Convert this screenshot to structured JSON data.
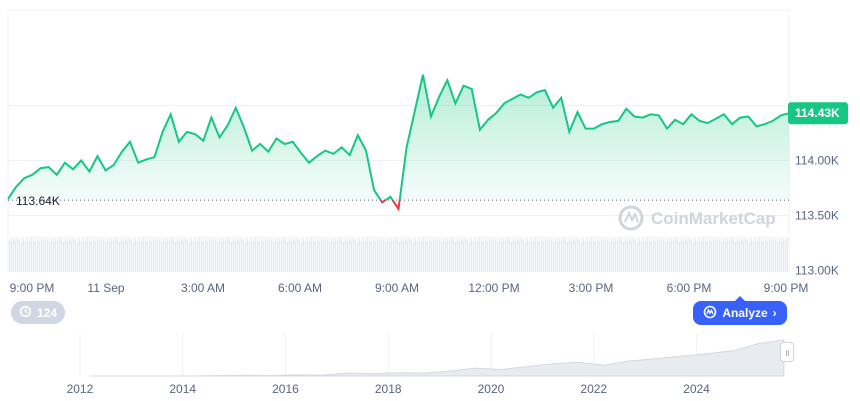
{
  "chart_data": {
    "type": "area",
    "title": "",
    "xlabel": "",
    "ylabel": "",
    "x_tick_labels": [
      "9:00 PM",
      "11 Sep",
      "3:00 AM",
      "6:00 AM",
      "9:00 AM",
      "12:00 PM",
      "3:00 PM",
      "6:00 PM",
      "9:00 PM"
    ],
    "y_tick_labels": [
      "114.00K",
      "113.50K",
      "113.00K"
    ],
    "y_ticks": [
      114000,
      113500,
      113000
    ],
    "ylim": [
      112850,
      115050
    ],
    "open_value": 113640,
    "open_label": "113.64K",
    "current_value": 114430,
    "current_label": "114.43K",
    "x_start_hours": 0,
    "x_end_hours": 24,
    "series": [
      {
        "x_hours": [
          0,
          0.25,
          0.5,
          0.75,
          1.0,
          1.25,
          1.5,
          1.75,
          2.0,
          2.25,
          2.5,
          2.75,
          3.0,
          3.25,
          3.5,
          3.75,
          4.0,
          4.25,
          4.5,
          4.75,
          5.0,
          5.25,
          5.5,
          5.75,
          6.0,
          6.25,
          6.5,
          6.75,
          7.0,
          7.25,
          7.5,
          7.75,
          8.0,
          8.25,
          8.5,
          8.75,
          9.0,
          9.25,
          9.5,
          9.75,
          10.0,
          10.25,
          10.5,
          10.75,
          11.0,
          11.25,
          11.5,
          11.75,
          12.0,
          12.25,
          12.5,
          12.75,
          13.0,
          13.25,
          13.5,
          13.75,
          14.0,
          14.25,
          14.5,
          14.75,
          15.0,
          15.25,
          15.5,
          15.75,
          16.0,
          16.25,
          16.5,
          16.75,
          17.0,
          17.25,
          17.5,
          17.75,
          18.0,
          18.25,
          18.5,
          18.75,
          19.0,
          19.25,
          19.5,
          19.75,
          20.0,
          20.25,
          20.5,
          20.75,
          21.0,
          21.25,
          21.5,
          21.75,
          22.0,
          22.25,
          22.5,
          22.75,
          23.0,
          23.25,
          23.5,
          23.75,
          24.0
        ],
        "values": [
          113650,
          113760,
          113840,
          113870,
          113930,
          113940,
          113870,
          113980,
          113920,
          114000,
          113900,
          114040,
          113910,
          113960,
          114080,
          114170,
          113980,
          114010,
          114030,
          114260,
          114420,
          114170,
          114260,
          114240,
          114180,
          114390,
          114210,
          114320,
          114480,
          114300,
          114090,
          114150,
          114080,
          114200,
          114150,
          114170,
          114070,
          113980,
          114040,
          114090,
          114060,
          114120,
          114050,
          114230,
          114090,
          113730,
          113620,
          113670,
          113560,
          114120,
          114450,
          114780,
          114400,
          114580,
          114730,
          114520,
          114680,
          114650,
          114280,
          114370,
          114430,
          114520,
          114560,
          114600,
          114570,
          114620,
          114640,
          114480,
          114570,
          114260,
          114440,
          114290,
          114290,
          114330,
          114350,
          114360,
          114470,
          114400,
          114390,
          114420,
          114410,
          114290,
          114370,
          114330,
          114420,
          114360,
          114340,
          114380,
          114420,
          114330,
          114390,
          114400,
          114310,
          114330,
          114360,
          114410,
          114430
        ]
      }
    ],
    "navigator": {
      "x_tick_labels": [
        "2012",
        "2014",
        "2016",
        "2018",
        "2020",
        "2022",
        "2024"
      ],
      "x_tick_years": [
        2012,
        2014,
        2016,
        2018,
        2020,
        2022,
        2024
      ],
      "year_range": [
        2010.6,
        2025.8
      ],
      "values": [
        0,
        0,
        0,
        0,
        0,
        1,
        2,
        1,
        3,
        2,
        8,
        6,
        9,
        8,
        14,
        22,
        18,
        26,
        34,
        38,
        30,
        42,
        48,
        55,
        62,
        70,
        90,
        100
      ],
      "values_start_year": 2012.2,
      "values_end_year": 2025.7
    },
    "colors": {
      "up": "#16c784",
      "down": "#ea3943",
      "accent": "#3861fb",
      "area_top": "#16c784"
    }
  },
  "controls": {
    "history_count": "124",
    "history_icon": "history-clock-icon",
    "analyze_label": "Analyze",
    "analyze_icon": "coinmarketcap-logo-icon",
    "chevron_icon": "chevron-right-icon",
    "handle_icon": "drag-handle-icon"
  },
  "watermark": {
    "text": "CoinMarketCap",
    "icon": "coinmarketcap-logo-icon"
  }
}
